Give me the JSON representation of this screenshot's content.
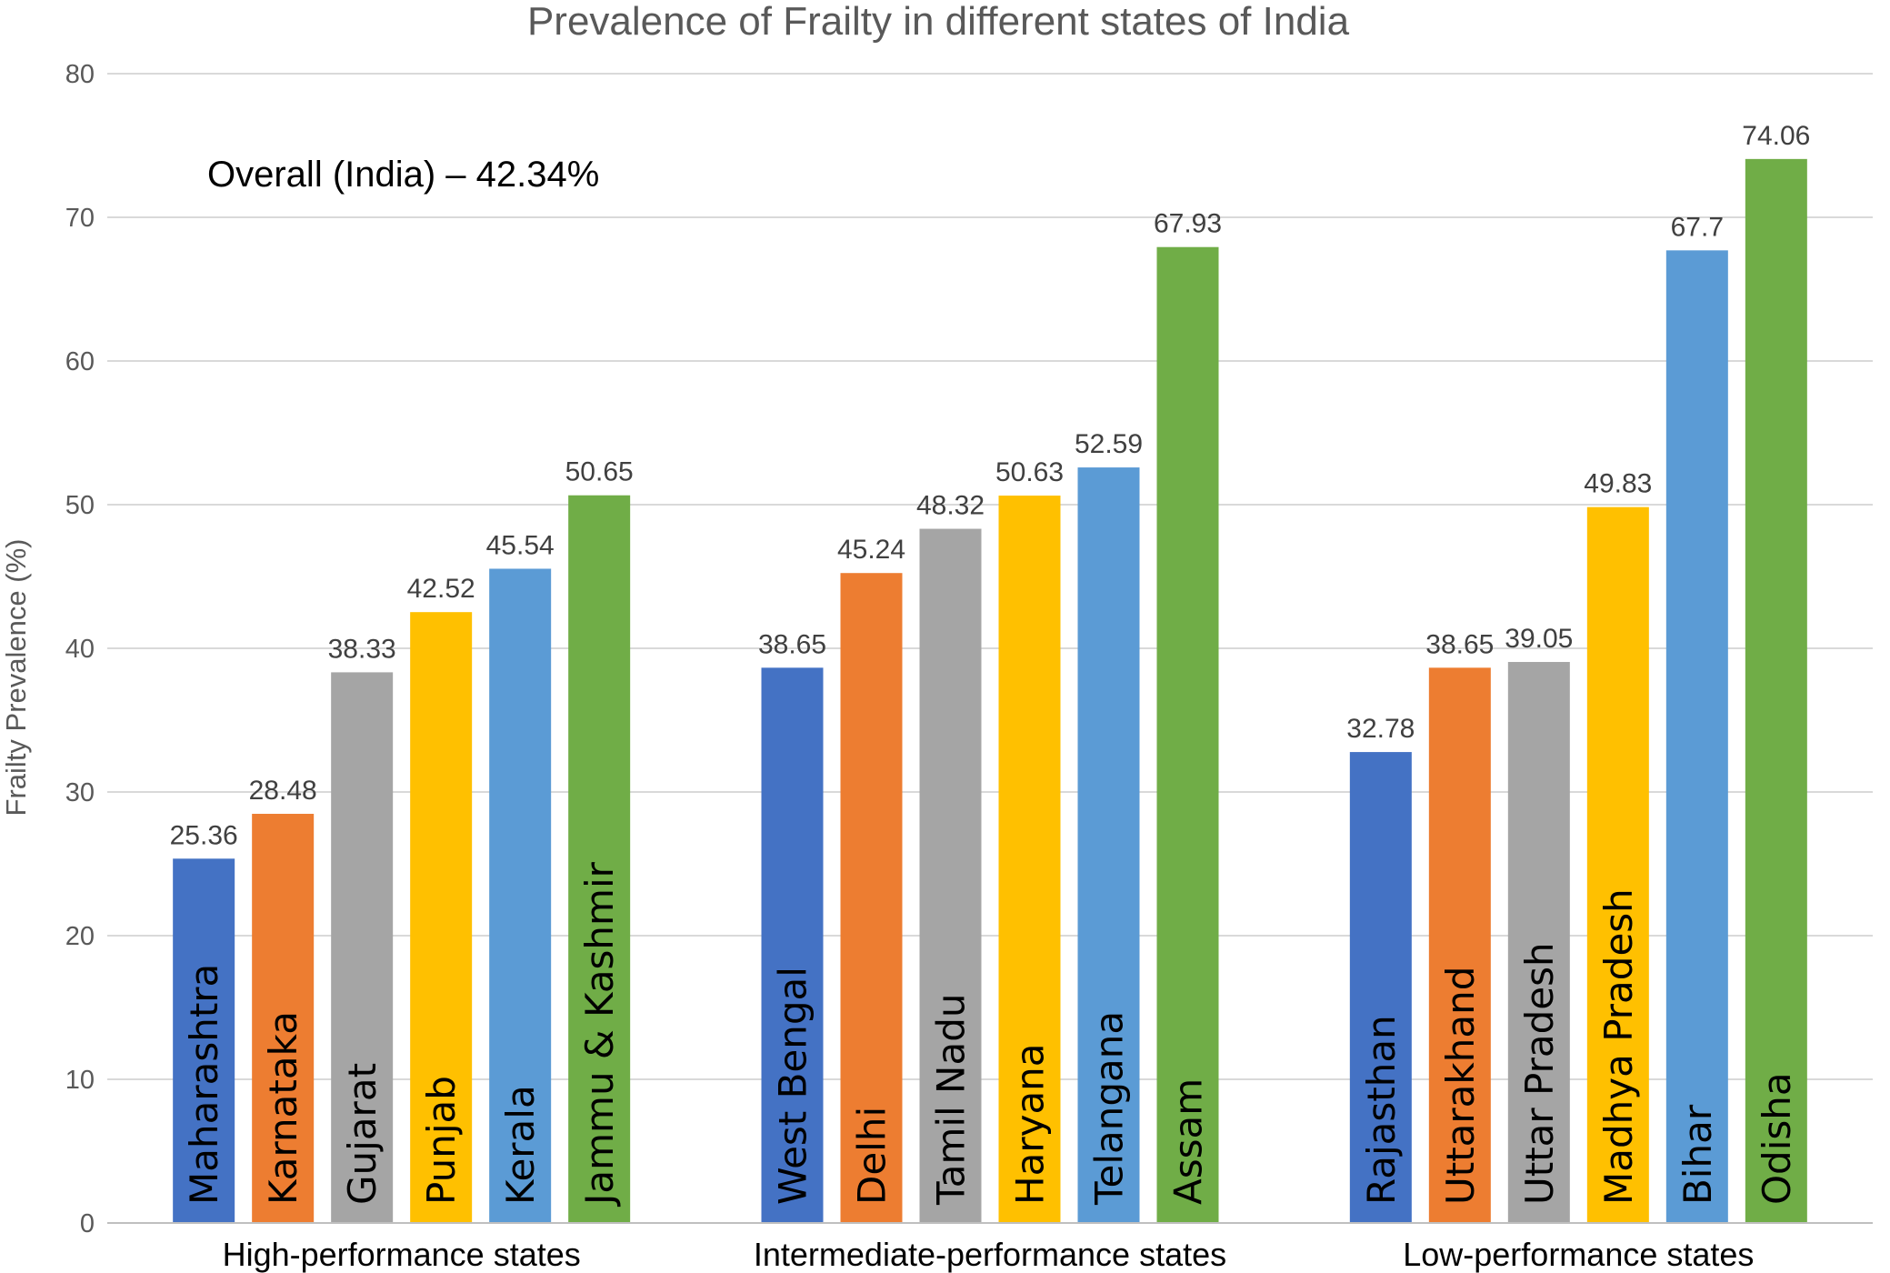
{
  "chart_data": {
    "type": "bar",
    "title": "Prevalence of Frailty in different states of India",
    "ylabel": "Frailty Prevalence (%)",
    "xlabel": "",
    "ylim": [
      0,
      80
    ],
    "yticks": [
      0,
      10,
      20,
      30,
      40,
      50,
      60,
      70,
      80
    ],
    "grid": true,
    "annotation": "Overall (India) – 42.34%",
    "colors": [
      "#4472C4",
      "#ED7D31",
      "#A5A5A5",
      "#FFC000",
      "#5B9BD5",
      "#70AD47"
    ],
    "groups": [
      {
        "name": "High-performance states",
        "bars": [
          {
            "label": "Maharashtra",
            "value": 25.36
          },
          {
            "label": "Karnataka",
            "value": 28.48
          },
          {
            "label": "Gujarat",
            "value": 38.33
          },
          {
            "label": "Punjab",
            "value": 42.52
          },
          {
            "label": "Kerala",
            "value": 45.54
          },
          {
            "label": "Jammu & Kashmir",
            "value": 50.65
          }
        ]
      },
      {
        "name": "Intermediate-performance states",
        "bars": [
          {
            "label": "West Bengal",
            "value": 38.65
          },
          {
            "label": "Delhi",
            "value": 45.24
          },
          {
            "label": "Tamil Nadu",
            "value": 48.32
          },
          {
            "label": "Haryana",
            "value": 50.63
          },
          {
            "label": "Telangana",
            "value": 52.59
          },
          {
            "label": "Assam",
            "value": 67.93
          }
        ]
      },
      {
        "name": "Low-performance states",
        "bars": [
          {
            "label": "Rajasthan",
            "value": 32.78
          },
          {
            "label": "Uttarakhand",
            "value": 38.65
          },
          {
            "label": "Uttar Pradesh",
            "value": 39.05
          },
          {
            "label": "Madhya Pradesh",
            "value": 49.83
          },
          {
            "label": "Bihar",
            "value": 67.7
          },
          {
            "label": "Odisha",
            "value": 74.06
          }
        ]
      }
    ]
  }
}
